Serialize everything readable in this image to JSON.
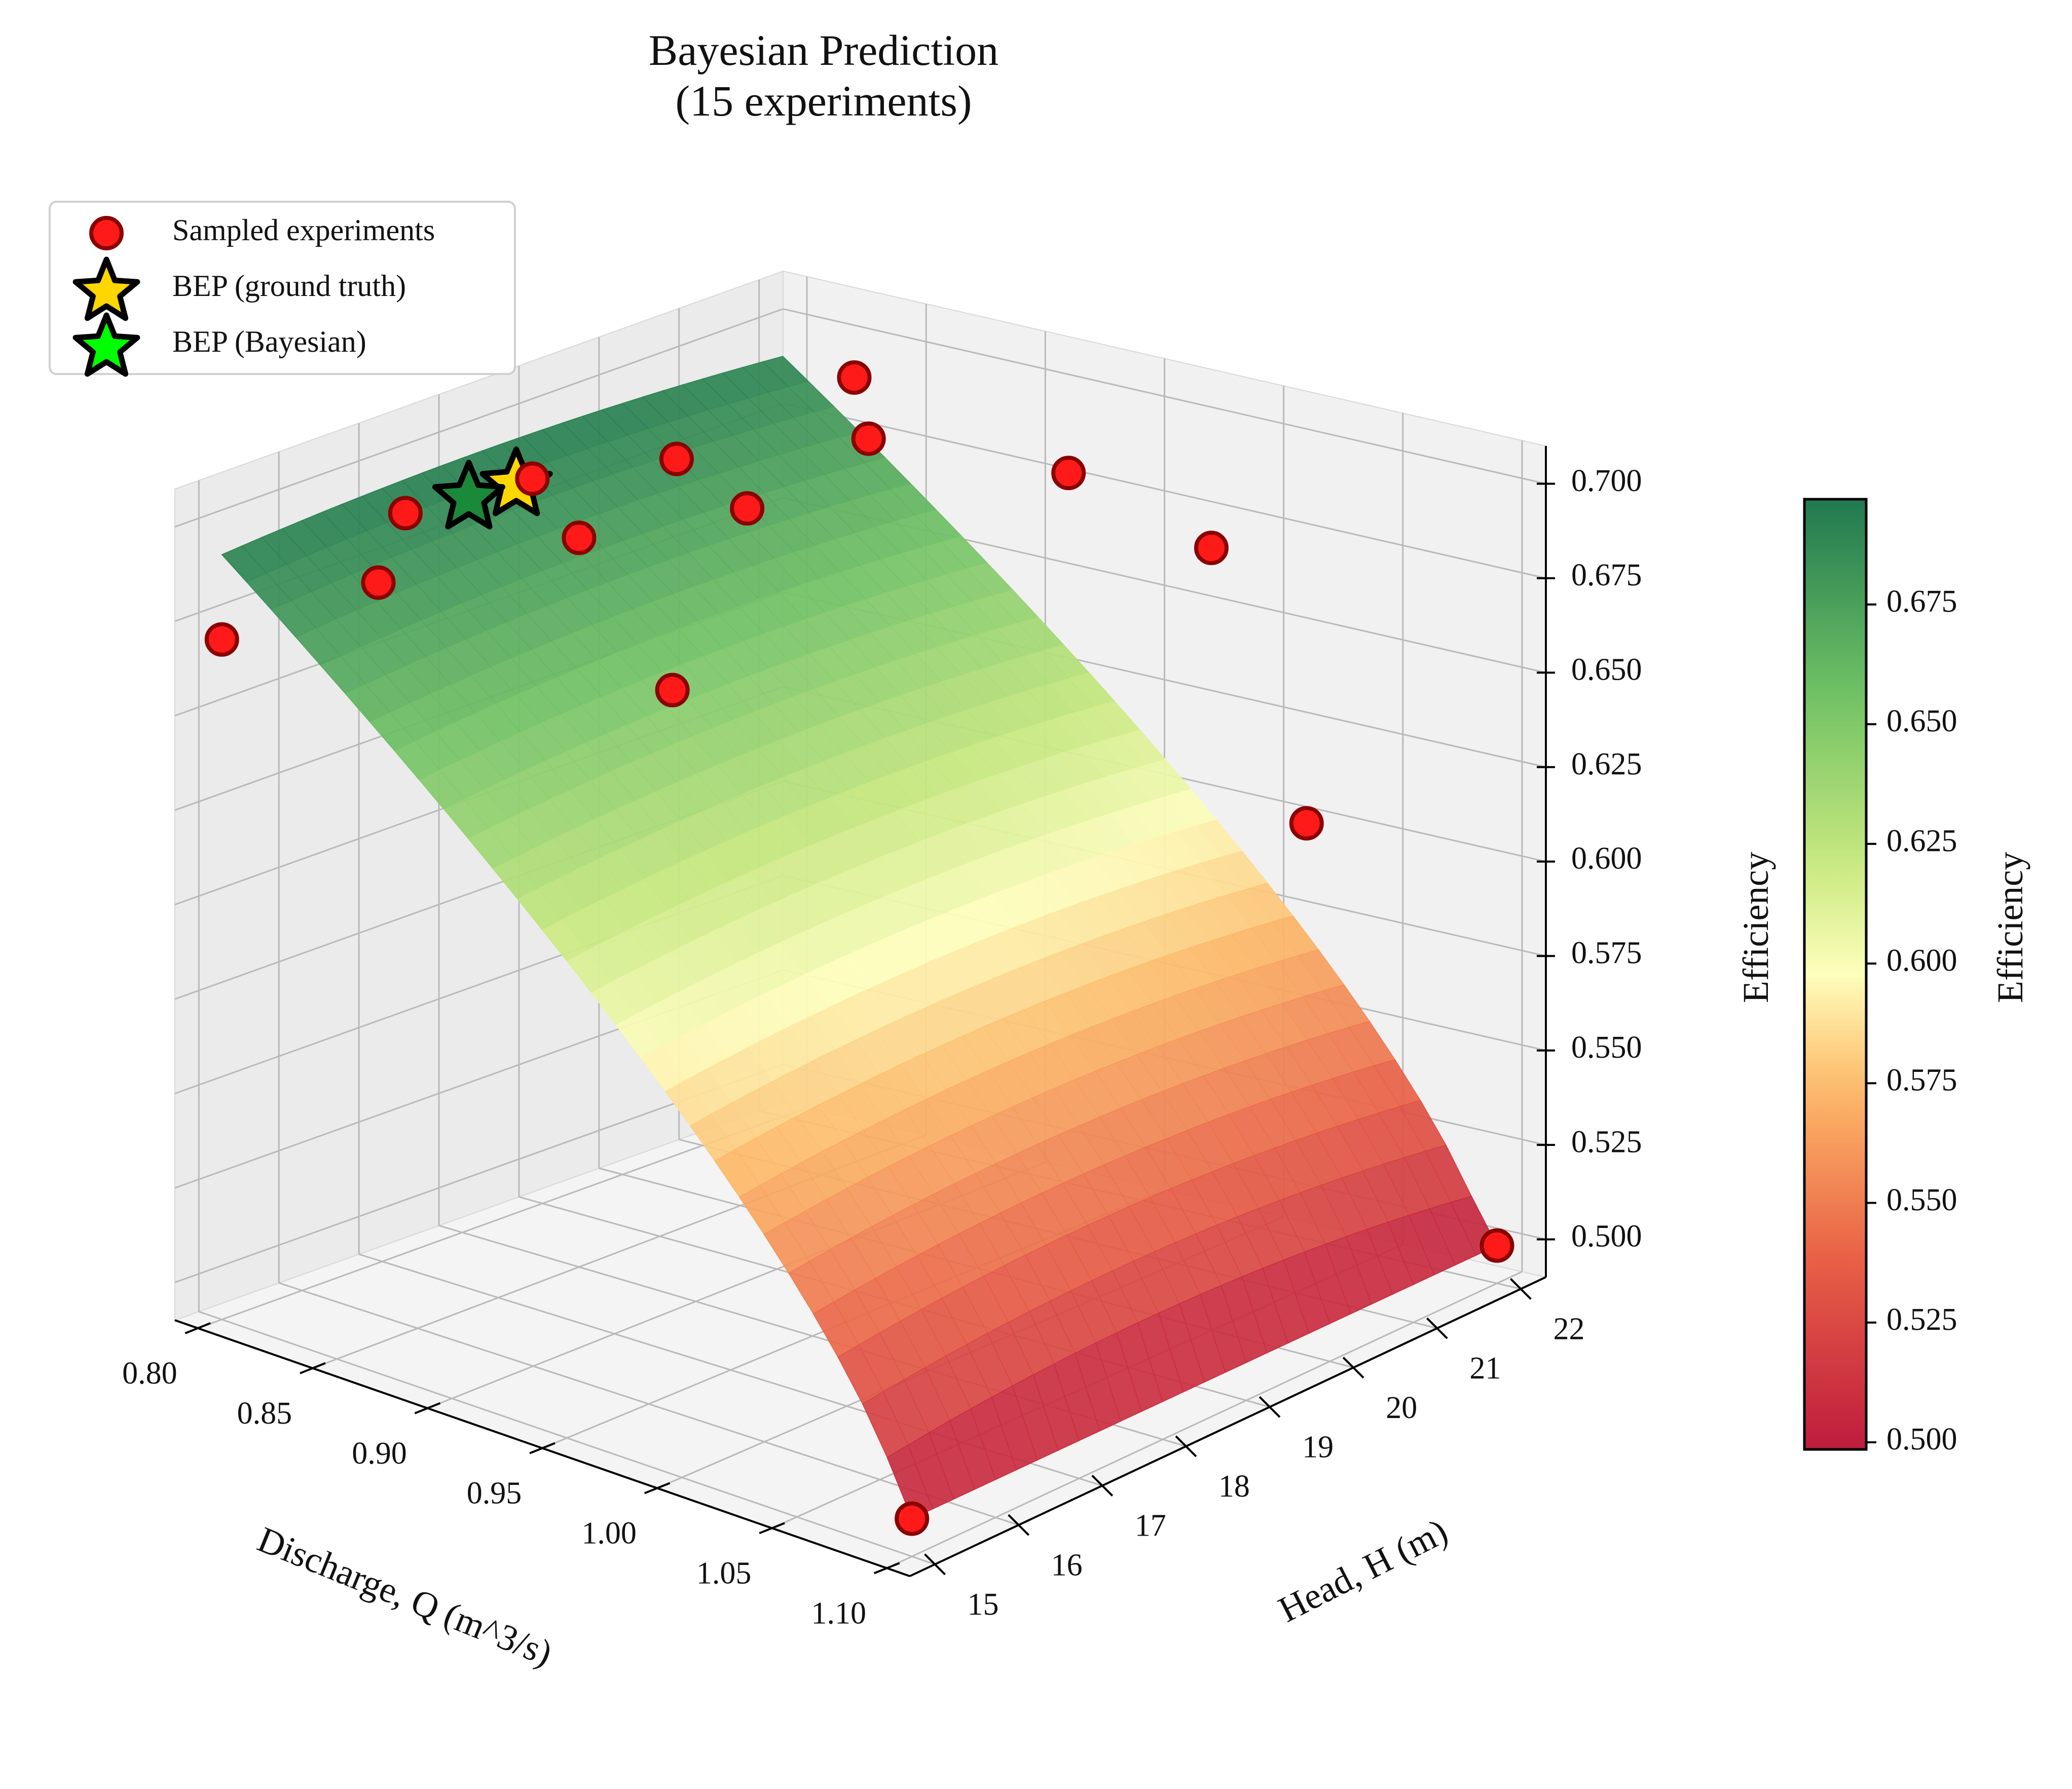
{
  "chart_data": {
    "type": "surface3d",
    "title": "Bayesian Prediction\n(15 experiments)",
    "xlabel": "Discharge, Q (m^3/s)",
    "ylabel": "Head, H (m)",
    "zlabel": "Efficiency",
    "xlim": [
      0.79,
      1.11
    ],
    "ylim": [
      14.7,
      22.3
    ],
    "zlim": [
      0.49,
      0.71
    ],
    "x_ticks": [
      0.8,
      0.85,
      0.9,
      0.95,
      1.0,
      1.05,
      1.1
    ],
    "x_tick_labels": [
      "0.80",
      "0.85",
      "0.90",
      "0.95",
      "1.00",
      "1.05",
      "1.10"
    ],
    "y_ticks": [
      15,
      16,
      17,
      18,
      19,
      20,
      21,
      22
    ],
    "y_tick_labels": [
      "15",
      "16",
      "17",
      "18",
      "19",
      "20",
      "21",
      "22"
    ],
    "z_ticks": [
      0.5,
      0.525,
      0.55,
      0.575,
      0.6,
      0.625,
      0.65,
      0.675,
      0.7
    ],
    "z_tick_labels": [
      "0.500",
      "0.525",
      "0.550",
      "0.575",
      "0.600",
      "0.625",
      "0.650",
      "0.675",
      "0.700"
    ],
    "surface": {
      "colormap": "RdYlGn",
      "q_range": [
        0.8,
        1.1
      ],
      "h_range": [
        15,
        22
      ],
      "efficiency_range": [
        0.5,
        0.695
      ]
    },
    "colorbar": {
      "label": "Efficiency",
      "range": [
        0.4985,
        0.697
      ],
      "ticks": [
        0.5,
        0.525,
        0.55,
        0.575,
        0.6,
        0.625,
        0.65,
        0.675
      ],
      "tick_labels": [
        "0.500",
        "0.525",
        "0.550",
        "0.575",
        "0.600",
        "0.625",
        "0.650",
        "0.675"
      ]
    },
    "legend": {
      "placement": "upper-left",
      "entries": [
        {
          "label": "Sampled experiments",
          "marker": "circle",
          "color": "#ff1a1a"
        },
        {
          "label": "BEP (ground truth)",
          "marker": "star",
          "color": "#ffd700"
        },
        {
          "label": "BEP (Bayesian)",
          "marker": "star",
          "color": "#00ff00"
        }
      ]
    },
    "experiments": [
      {
        "q": 0.8,
        "h": 15.0,
        "eff": 0.67
      },
      {
        "q": 0.84,
        "h": 15.8,
        "eff": 0.687
      },
      {
        "q": 0.81,
        "h": 17.0,
        "eff": 0.69
      },
      {
        "q": 0.83,
        "h": 18.0,
        "eff": 0.695
      },
      {
        "q": 0.85,
        "h": 18.0,
        "eff": 0.683
      },
      {
        "q": 0.84,
        "h": 19.5,
        "eff": 0.69
      },
      {
        "q": 0.87,
        "h": 19.5,
        "eff": 0.682
      },
      {
        "q": 0.89,
        "h": 18.0,
        "eff": 0.65
      },
      {
        "q": 0.83,
        "h": 22.0,
        "eff": 0.69
      },
      {
        "q": 0.87,
        "h": 21.0,
        "eff": 0.688
      },
      {
        "q": 0.92,
        "h": 22.0,
        "eff": 0.678
      },
      {
        "q": 0.98,
        "h": 22.0,
        "eff": 0.667
      },
      {
        "q": 1.02,
        "h": 22.0,
        "eff": 0.6
      },
      {
        "q": 1.1,
        "h": 15.0,
        "eff": 0.5
      },
      {
        "q": 1.1,
        "h": 22.0,
        "eff": 0.5
      }
    ],
    "bep_ground_truth": {
      "q": 0.83,
      "h": 17.8,
      "eff": 0.695
    },
    "bep_bayesian": {
      "q": 0.82,
      "h": 17.5,
      "eff": 0.692
    }
  }
}
